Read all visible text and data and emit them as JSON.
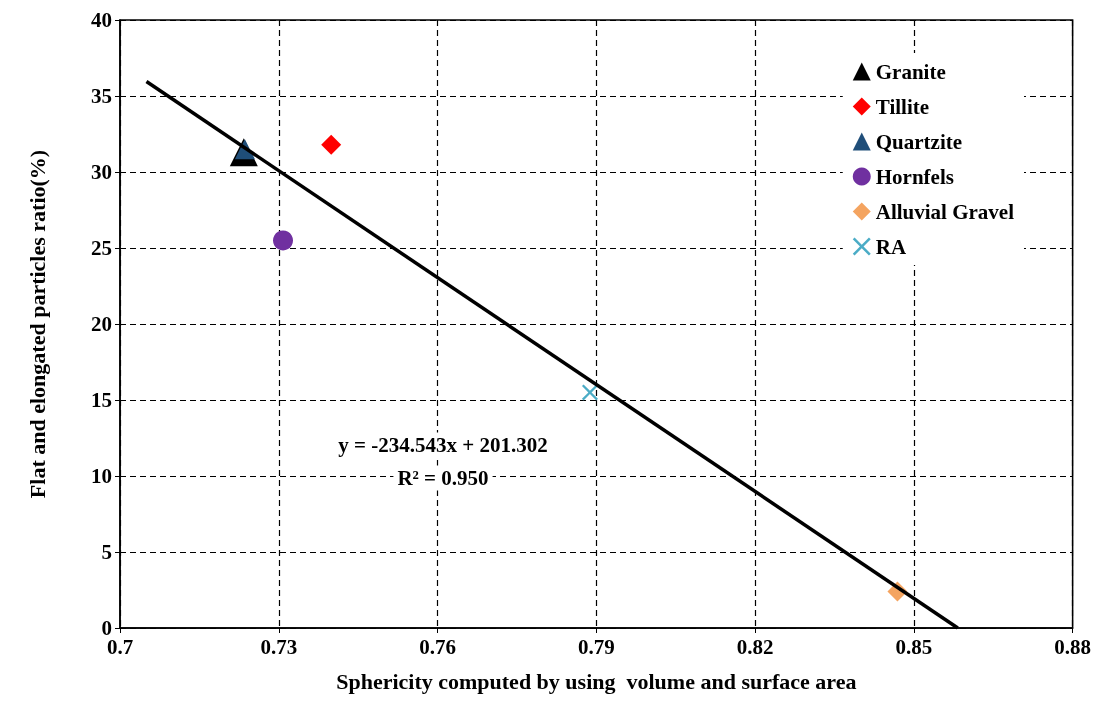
{
  "chart_data": {
    "type": "scatter",
    "xlabel": "Sphericity computed by using  volume and surface area",
    "ylabel": "Flat and elongated particles ratio(%)",
    "xlim": [
      0.7,
      0.88
    ],
    "xticks": [
      0.7,
      0.73,
      0.76,
      0.79,
      0.82,
      0.85,
      0.88
    ],
    "ylim": [
      0,
      40
    ],
    "yticks": [
      0,
      5,
      10,
      15,
      20,
      25,
      30,
      35,
      40
    ],
    "grid": true,
    "legend": "top right",
    "series": [
      {
        "name": "Granite",
        "color": "#000000",
        "marker": "triangle",
        "x": [
          0.7234
        ],
        "values": [
          31.3
        ]
      },
      {
        "name": "Tillite",
        "color": "#ff0000",
        "marker": "diamond",
        "x": [
          0.7399
        ],
        "values": [
          31.8
        ]
      },
      {
        "name": "Quartzite",
        "color": "#1f4e79",
        "marker": "triangle",
        "x": [
          0.7236
        ],
        "values": [
          31.5
        ]
      },
      {
        "name": "Hornfels",
        "color": "#7030a0",
        "marker": "circle",
        "x": [
          0.7308
        ],
        "values": [
          25.5
        ]
      },
      {
        "name": "Alluvial Gravel",
        "color": "#f4a460",
        "marker": "diamond",
        "x": [
          0.8469
        ],
        "values": [
          2.4
        ]
      },
      {
        "name": "RA",
        "color": "#4bacc6",
        "marker": "cross",
        "x": [
          0.7888
        ],
        "values": [
          15.5
        ]
      },
      {
        "type": "line",
        "color": "#000000",
        "marker": "none",
        "line_style": "solid",
        "x": [
          0.705,
          0.8583
        ],
        "values": [
          35.95,
          0
        ]
      }
    ],
    "annotations": [
      "y = -234.543x + 201.302",
      "R² = 0.950"
    ]
  }
}
